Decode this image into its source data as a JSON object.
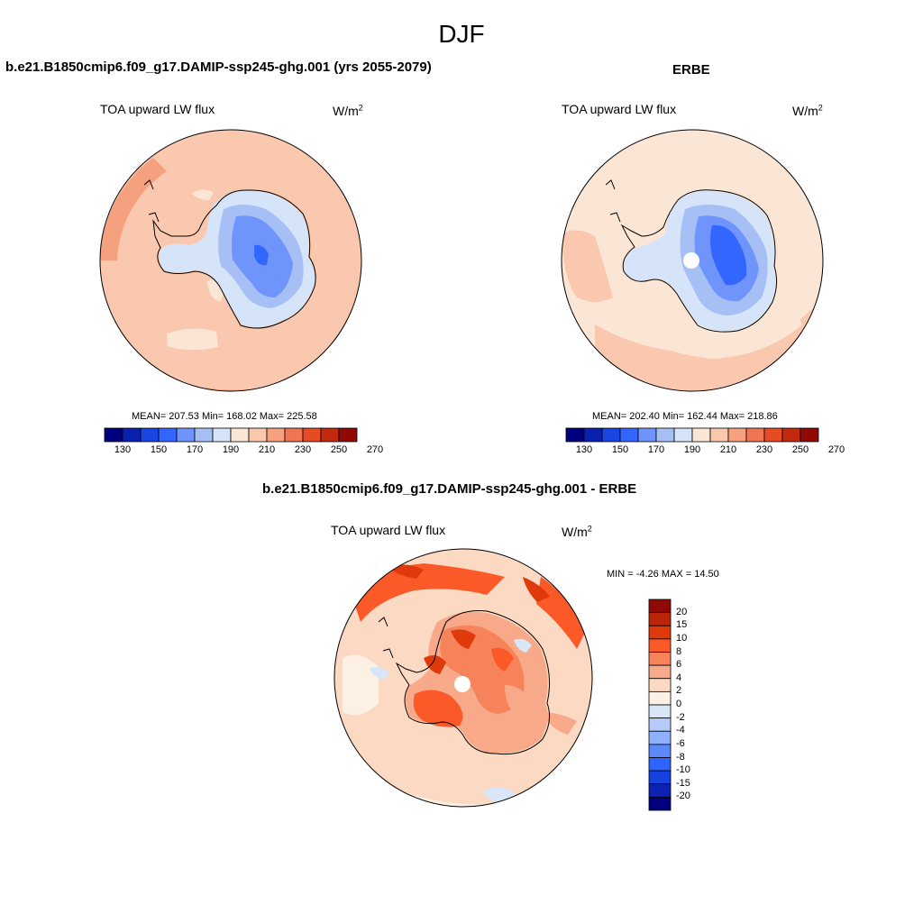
{
  "figure": {
    "season": "DJF"
  },
  "panels": [
    {
      "title": "b.e21.B1850cmip6.f09_g17.DAMIP-ssp245-ghg.001 (yrs 2055-2079)",
      "variable": "TOA upward LW flux",
      "units_base": "W/m",
      "units_sup": "2",
      "stats": "MEAN= 207.53  Min= 168.02  Max= 225.58"
    },
    {
      "title": "ERBE",
      "variable": "TOA upward LW flux",
      "units_base": "W/m",
      "units_sup": "2",
      "stats": "MEAN= 202.40  Min= 162.44  Max= 218.86"
    },
    {
      "title": "b.e21.B1850cmip6.f09_g17.DAMIP-ssp245-ghg.001 - ERBE",
      "variable": "TOA upward LW flux",
      "units_base": "W/m",
      "units_sup": "2",
      "stats": "MIN =  -4.26 MAX =  14.50"
    }
  ],
  "colorbar_abs": {
    "colors": [
      "#00007f",
      "#0a21b0",
      "#1a45e0",
      "#3366ff",
      "#6f94fb",
      "#a6bff5",
      "#d6e4fa",
      "#fbe6d6",
      "#f9c8ae",
      "#f5a07f",
      "#f07552",
      "#e74b25",
      "#c22a0c",
      "#8f0a05"
    ],
    "tick_labels": [
      "130",
      "150",
      "170",
      "190",
      "210",
      "230",
      "250",
      "270"
    ]
  },
  "colorbar_diff": {
    "colors": [
      "#8f0a05",
      "#bb2406",
      "#e03a0c",
      "#fb5a28",
      "#f7835a",
      "#f7a98a",
      "#fbd9c2",
      "#fdf0e4",
      "#d8e6f8",
      "#b4ccf7",
      "#8fb0fb",
      "#5b88fb",
      "#2d63ff",
      "#1342e0",
      "#0b22b5",
      "#00007f"
    ],
    "tick_labels": [
      "20",
      "15",
      "10",
      "8",
      "6",
      "4",
      "2",
      "0",
      "-2",
      "-4",
      "-6",
      "-8",
      "-10",
      "-15",
      "-20"
    ]
  }
}
